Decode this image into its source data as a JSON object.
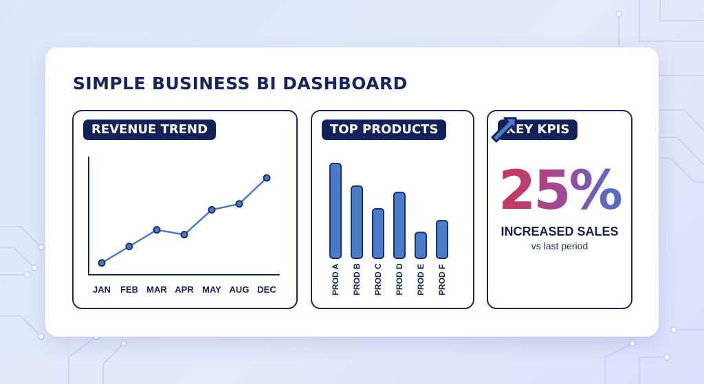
{
  "dashboard": {
    "title": "SIMPLE BUSINESS BI DASHBOARD"
  },
  "colors": {
    "navy": "#132259",
    "series": "#4a78c8",
    "bar_fill": "#4a7ccc",
    "bar_stroke": "#1b2f6e",
    "kpi_gradient": [
      "#d4334a",
      "#9b4a9c",
      "#3d78d4"
    ]
  },
  "panels": {
    "revenue": {
      "title": "REVENUE TREND"
    },
    "products": {
      "title": "TOP PRODUCTS"
    },
    "kpis": {
      "title": "KEY KPIS",
      "value": "25%",
      "label": "INCREASED SALES",
      "sublabel": "vs last period",
      "trend_icon": "arrow-up-right-icon"
    }
  },
  "chart_data": [
    {
      "type": "line",
      "title": "REVENUE TREND",
      "categories": [
        "JAN",
        "FEB",
        "MAR",
        "APR",
        "MAY",
        "AUG",
        "DEC"
      ],
      "values": [
        10,
        24,
        38,
        34,
        55,
        60,
        82
      ],
      "ylim": [
        0,
        100
      ],
      "grid": false
    },
    {
      "type": "bar",
      "title": "TOP PRODUCTS",
      "categories": [
        "PROD A",
        "PROD B",
        "PROD C",
        "PROD D",
        "PROD E",
        "PROD F"
      ],
      "values": [
        100,
        75,
        50,
        68,
        24,
        37
      ],
      "grid": false
    }
  ]
}
